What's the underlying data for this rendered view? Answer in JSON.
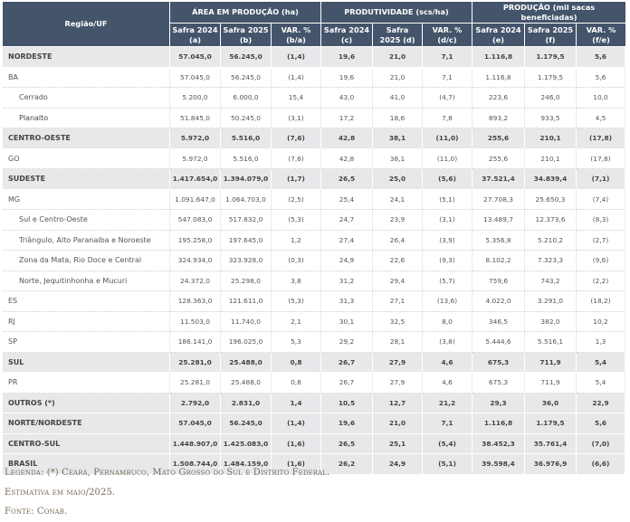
{
  "table": {
    "header": {
      "region": "Região/UF",
      "groups": [
        {
          "label": "ÁREA EM PRODUÇÃO (ha)",
          "cols": [
            "Safra 2024 (a)",
            "Safra 2025 (b)",
            "VAR. % (b/a)"
          ]
        },
        {
          "label": "PRODUTIVIDADE (scs/ha)",
          "cols": [
            "Safra 2024 (c)",
            "Safra 2025 (d)",
            "VAR. % (d/c)"
          ]
        },
        {
          "label": "PRODUÇÃO (mil sacas beneficiadas)",
          "cols": [
            "Safra 2024 (e)",
            "Safra 2025 (f)",
            "VAR. % (f/e)"
          ]
        }
      ]
    },
    "rows": [
      {
        "name": "NORDESTE",
        "type": "bold",
        "values": [
          "57.045,0",
          "56.245,0",
          "(1,4)",
          "19,6",
          "21,0",
          "7,1",
          "1.116,8",
          "1.179,5",
          "5,6"
        ]
      },
      {
        "name": "BA",
        "type": "normal",
        "values": [
          "57.045,0",
          "56.245,0",
          "(1,4)",
          "19,6",
          "21,0",
          "7,1",
          "1.116,8",
          "1.179,5",
          "5,6"
        ]
      },
      {
        "name": "Cerrado",
        "type": "sub",
        "values": [
          "5.200,0",
          "6.000,0",
          "15,4",
          "43,0",
          "41,0",
          "(4,7)",
          "223,6",
          "246,0",
          "10,0"
        ]
      },
      {
        "name": "Planalto",
        "type": "sub",
        "values": [
          "51.845,0",
          "50.245,0",
          "(3,1)",
          "17,2",
          "18,6",
          "7,8",
          "893,2",
          "933,5",
          "4,5"
        ]
      },
      {
        "name": "CENTRO-OESTE",
        "type": "bold",
        "values": [
          "5.972,0",
          "5.516,0",
          "(7,6)",
          "42,8",
          "38,1",
          "(11,0)",
          "255,6",
          "210,1",
          "(17,8)"
        ]
      },
      {
        "name": "GO",
        "type": "normal",
        "values": [
          "5.972,0",
          "5.516,0",
          "(7,6)",
          "42,8",
          "38,1",
          "(11,0)",
          "255,6",
          "210,1",
          "(17,8)"
        ]
      },
      {
        "name": "SUDESTE",
        "type": "bold",
        "values": [
          "1.417.654,0",
          "1.394.079,0",
          "(1,7)",
          "26,5",
          "25,0",
          "(5,6)",
          "37.521,4",
          "34.839,4",
          "(7,1)"
        ]
      },
      {
        "name": "MG",
        "type": "normal",
        "values": [
          "1.091.647,0",
          "1.064.703,0",
          "(2,5)",
          "25,4",
          "24,1",
          "(5,1)",
          "27.708,3",
          "25.650,3",
          "(7,4)"
        ]
      },
      {
        "name": "Sul e Centro-Oeste",
        "type": "sub",
        "values": [
          "547.083,0",
          "517.832,0",
          "(5,3)",
          "24,7",
          "23,9",
          "(3,1)",
          "13.489,7",
          "12.373,6",
          "(8,3)"
        ]
      },
      {
        "name": "Triângulo, Alto Paranaiba e Noroeste",
        "type": "sub",
        "values": [
          "195.258,0",
          "197.645,0",
          "1,2",
          "27,4",
          "26,4",
          "(3,9)",
          "5.356,8",
          "5.210,2",
          "(2,7)"
        ]
      },
      {
        "name": "Zona da Mata, Rio Doce e Central",
        "type": "sub",
        "values": [
          "324.934,0",
          "323.928,0",
          "(0,3)",
          "24,9",
          "22,6",
          "(9,3)",
          "8.102,2",
          "7.323,3",
          "(9,6)"
        ]
      },
      {
        "name": "Norte, Jequitinhonha e Mucuri",
        "type": "sub",
        "values": [
          "24.372,0",
          "25.298,0",
          "3,8",
          "31,2",
          "29,4",
          "(5,7)",
          "759,6",
          "743,2",
          "(2,2)"
        ]
      },
      {
        "name": "ES",
        "type": "normal",
        "values": [
          "128.363,0",
          "121.611,0",
          "(5,3)",
          "31,3",
          "27,1",
          "(13,6)",
          "4.022,0",
          "3.291,0",
          "(18,2)"
        ]
      },
      {
        "name": "RJ",
        "type": "normal",
        "values": [
          "11.503,0",
          "11.740,0",
          "2,1",
          "30,1",
          "32,5",
          "8,0",
          "346,5",
          "382,0",
          "10,2"
        ]
      },
      {
        "name": "SP",
        "type": "normal",
        "values": [
          "186.141,0",
          "196.025,0",
          "5,3",
          "29,2",
          "28,1",
          "(3,8)",
          "5.444,6",
          "5.516,1",
          "1,3"
        ]
      },
      {
        "name": "SUL",
        "type": "bold",
        "values": [
          "25.281,0",
          "25.488,0",
          "0,8",
          "26,7",
          "27,9",
          "4,6",
          "675,3",
          "711,9",
          "5,4"
        ]
      },
      {
        "name": "PR",
        "type": "normal",
        "values": [
          "25.281,0",
          "25.488,0",
          "0,8",
          "26,7",
          "27,9",
          "4,6",
          "675,3",
          "711,9",
          "5,4"
        ]
      },
      {
        "name": "OUTROS (*)",
        "type": "bold",
        "values": [
          "2.792,0",
          "2.831,0",
          "1,4",
          "10,5",
          "12,7",
          "21,2",
          "29,3",
          "36,0",
          "22,9"
        ]
      },
      {
        "name": "NORTE/NORDESTE",
        "type": "bold",
        "values": [
          "57.045,0",
          "56.245,0",
          "(1,4)",
          "19,6",
          "21,0",
          "7,1",
          "1.116,8",
          "1.179,5",
          "5,6"
        ]
      },
      {
        "name": "CENTRO-SUL",
        "type": "bold",
        "values": [
          "1.448.907,0",
          "1.425.083,0",
          "(1,6)",
          "26,5",
          "25,1",
          "(5,4)",
          "38.452,3",
          "35.761,4",
          "(7,0)"
        ]
      },
      {
        "name": "BRASIL",
        "type": "bold",
        "values": [
          "1.508.744,0",
          "1.484.159,0",
          "(1,6)",
          "26,2",
          "24,9",
          "(5,1)",
          "39.598,4",
          "36.976,9",
          "(6,6)"
        ]
      }
    ]
  },
  "notes": {
    "legend": "Legenda: (*) Ceará, Pernambuco, Mato Grosso do Sul e Distrito Federal.",
    "estimate": "Estimativa em maio/2025.",
    "source": "Fonte: Conab."
  },
  "colors": {
    "header_bg": "#44546a",
    "bold_row_bg": "#e8e8eb",
    "notes_text": "#7a6a5a"
  }
}
